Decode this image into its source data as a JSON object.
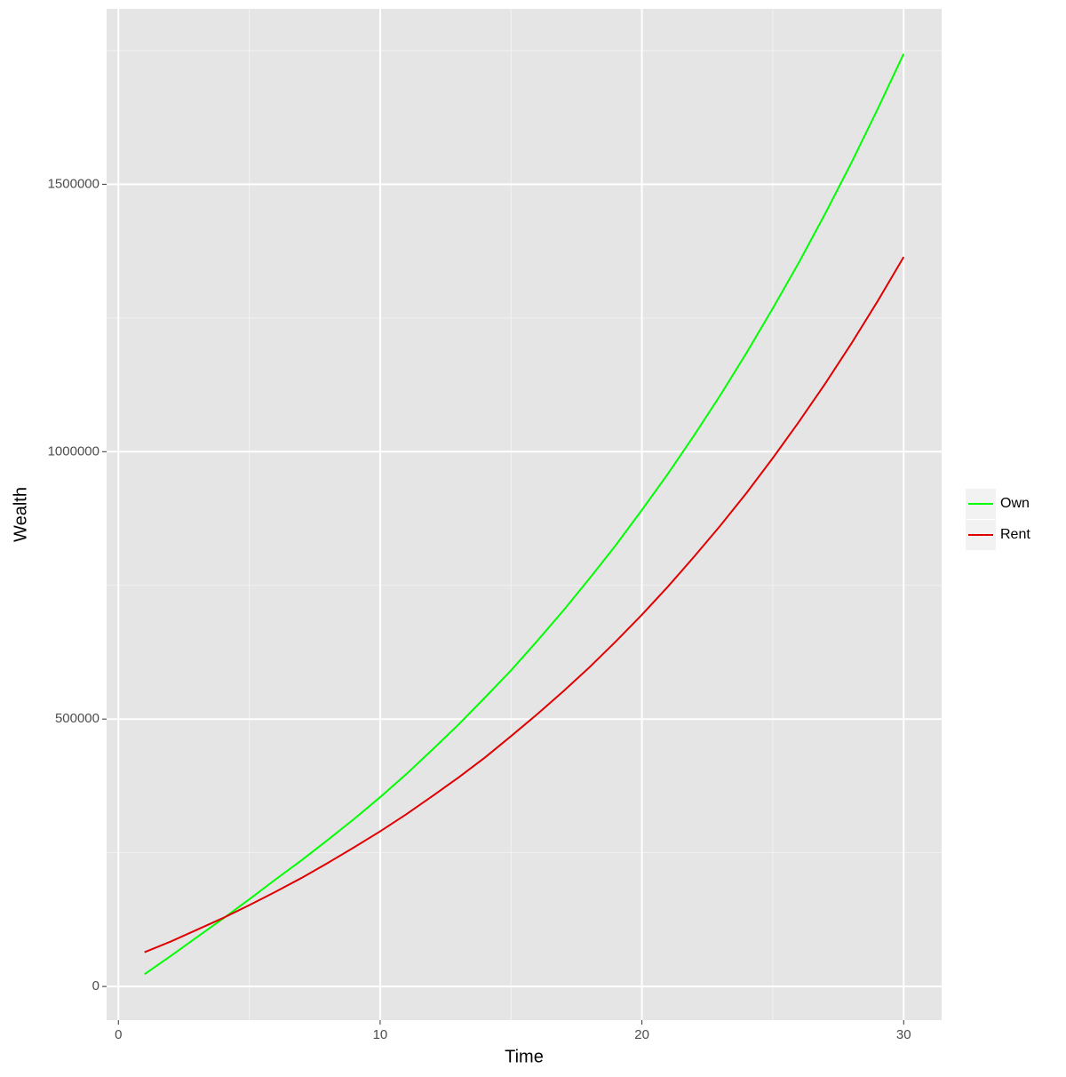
{
  "chart_data": {
    "type": "line",
    "x_label": "Time",
    "y_label": "Wealth",
    "x": [
      1,
      2,
      3,
      4,
      5,
      6,
      7,
      8,
      9,
      10,
      11,
      12,
      13,
      14,
      15,
      16,
      17,
      18,
      19,
      20,
      21,
      22,
      23,
      24,
      25,
      26,
      27,
      28,
      29,
      30
    ],
    "series": [
      {
        "name": "Own",
        "color": "#00ff00",
        "values": [
          23000,
          57000,
          92000,
          127000,
          163000,
          200000,
          236000,
          274000,
          313000,
          354000,
          397000,
          443000,
          490000,
          540000,
          591000,
          646000,
          703000,
          763000,
          825000,
          891000,
          959000,
          1031000,
          1106000,
          1185000,
          1268000,
          1354000,
          1445000,
          1540000,
          1640000,
          1744000
        ]
      },
      {
        "name": "Rent",
        "color": "#e00000",
        "values": [
          64000,
          84000,
          106000,
          128000,
          152000,
          177000,
          203000,
          231000,
          260000,
          290000,
          322000,
          356000,
          391000,
          428000,
          468000,
          509000,
          552000,
          597000,
          645000,
          695000,
          748000,
          804000,
          862000,
          923000,
          988000,
          1056000,
          1127000,
          1202000,
          1281000,
          1364000
        ]
      }
    ],
    "xlim": [
      -0.45,
      31.45
    ],
    "xticks": [
      0,
      10,
      20,
      30
    ],
    "x_minor_ticks": [
      5,
      15,
      25
    ],
    "ylim": [
      -62950,
      1827950
    ],
    "yticks": [
      0,
      500000,
      1000000,
      1500000
    ],
    "y_minor_ticks": [
      250000,
      750000,
      1250000,
      1750000
    ],
    "grid": true,
    "legend_position": "right"
  }
}
